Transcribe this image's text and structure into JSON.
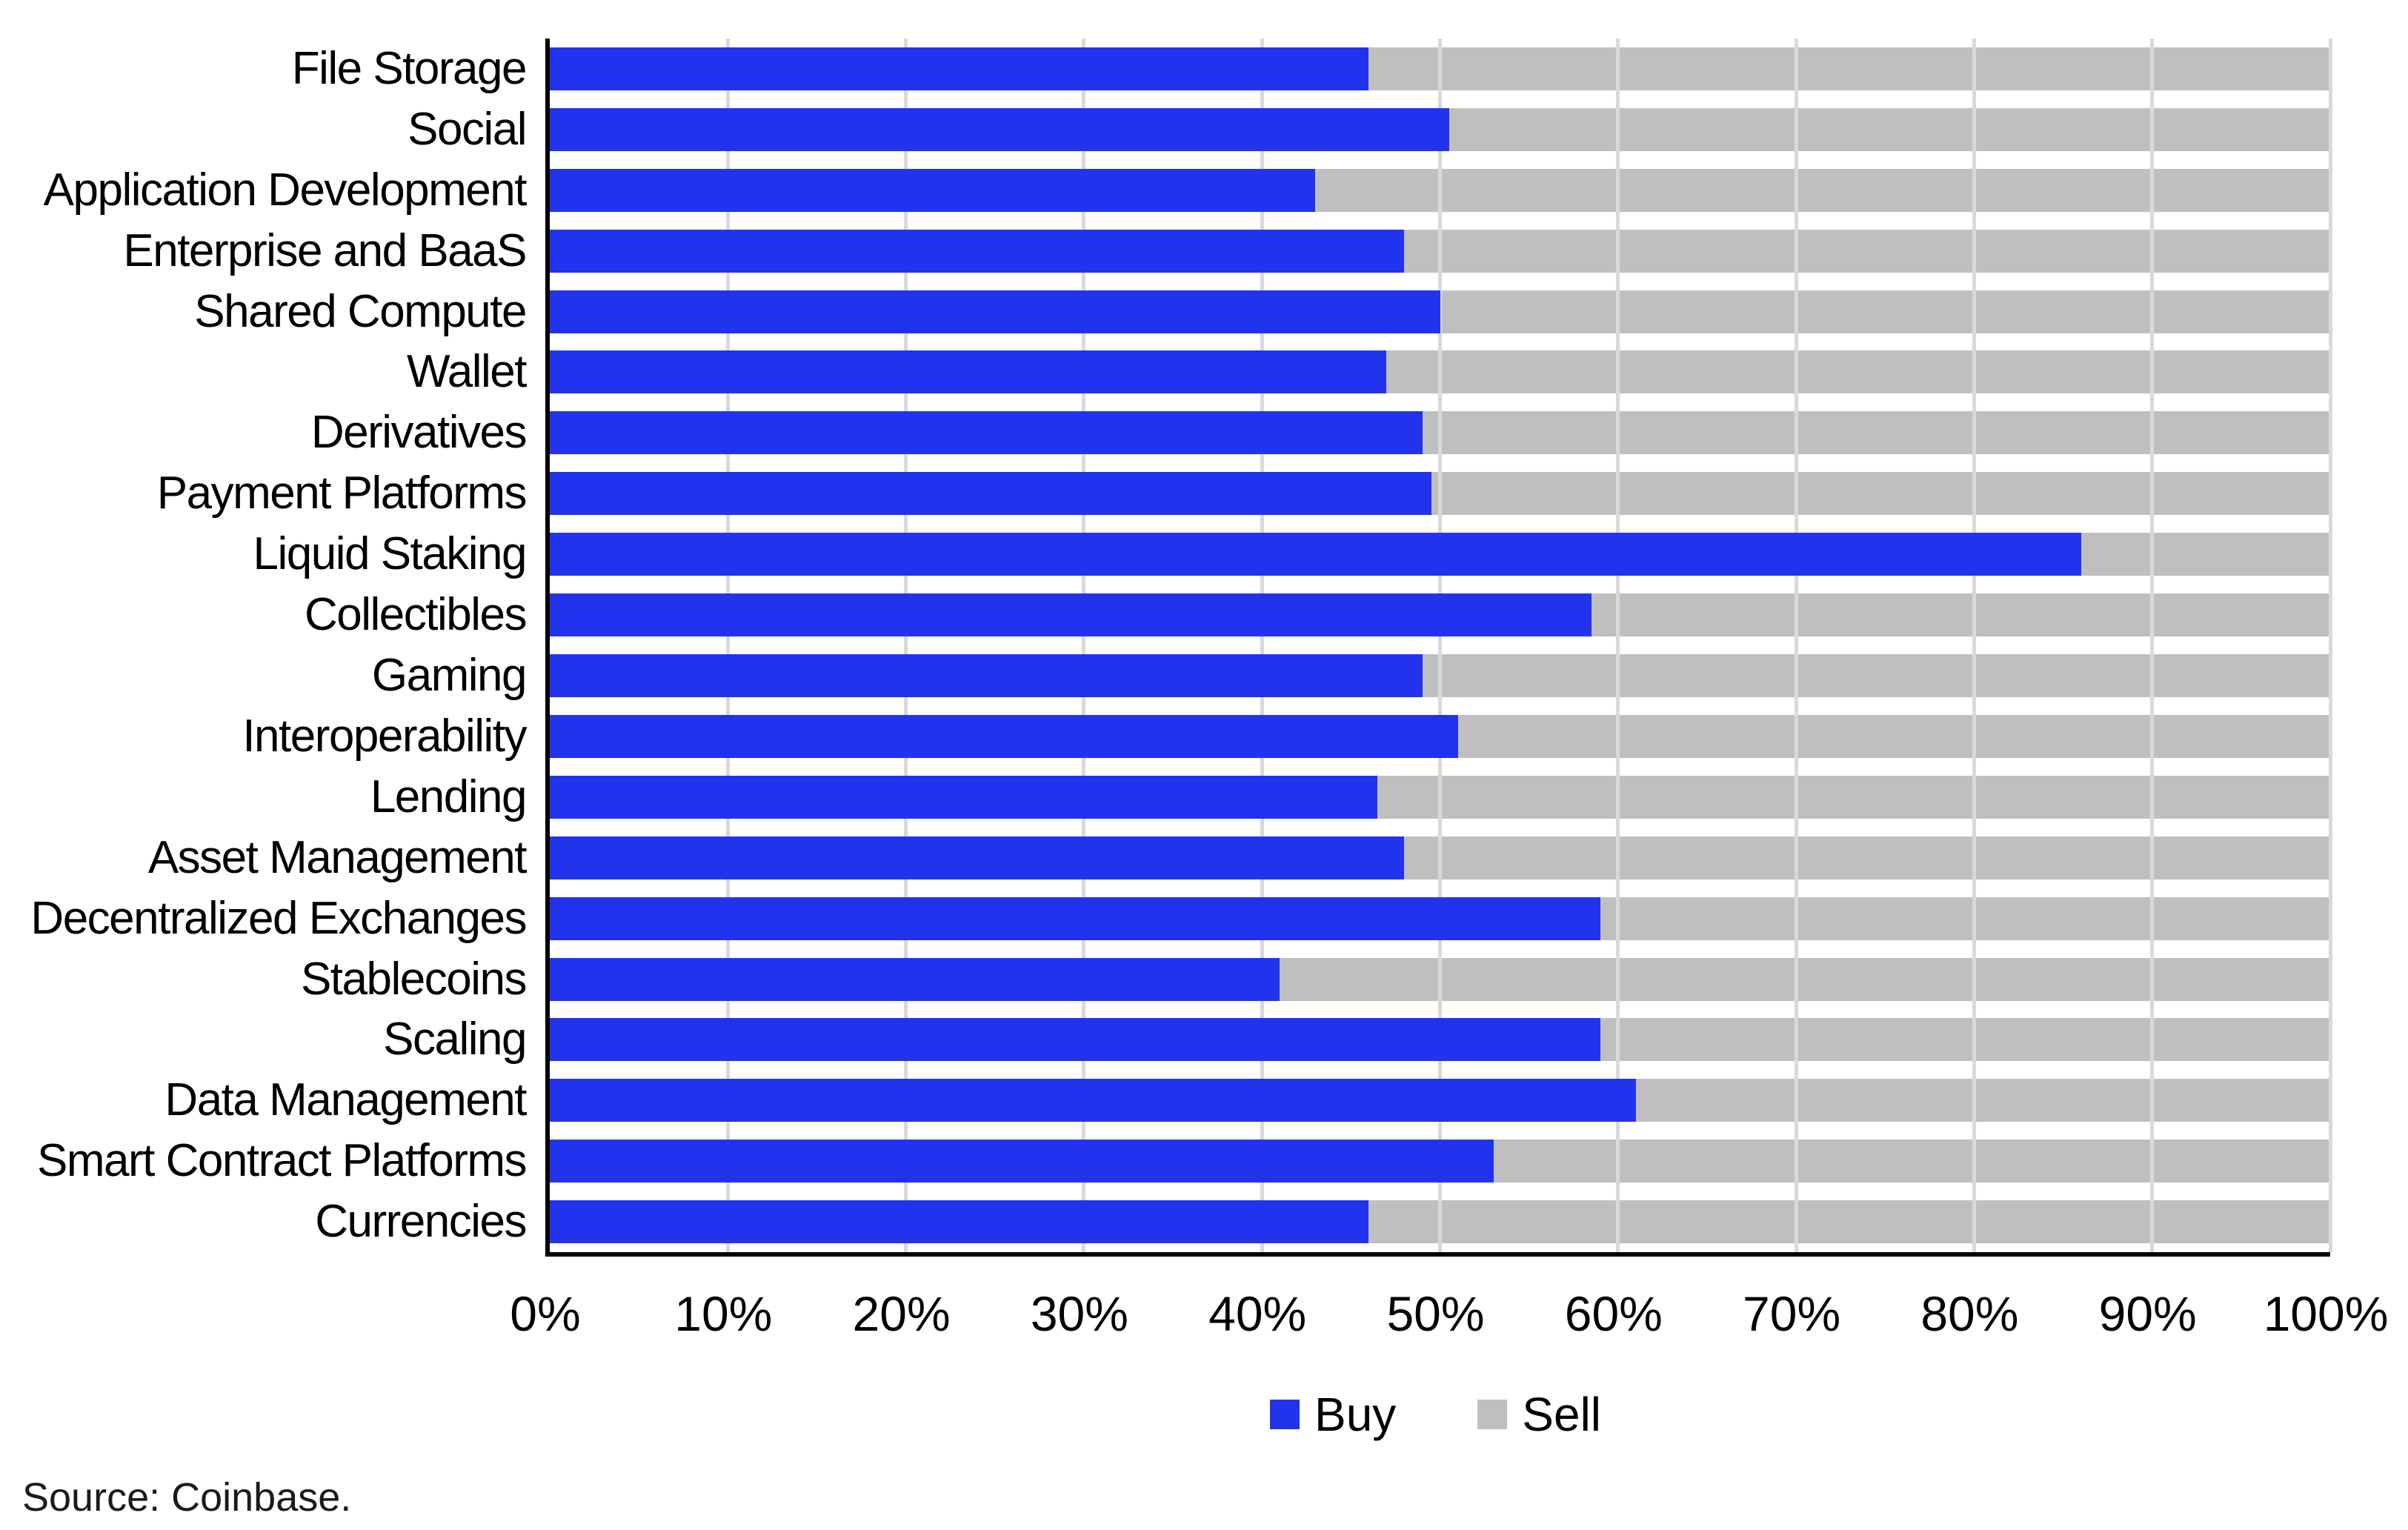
{
  "figure": {
    "background": "#FFFFFF",
    "source_note": "Source: Coinbase."
  },
  "chart_data": {
    "type": "bar",
    "orientation": "horizontal",
    "stacked": true,
    "title": "",
    "xlabel": "",
    "ylabel": "",
    "categories": [
      "File Storage",
      "Social",
      "Application Development",
      "Enterprise and BaaS",
      "Shared Compute",
      "Wallet",
      "Derivatives",
      "Payment Platforms",
      "Liquid Staking",
      "Collectibles",
      "Gaming",
      "Interoperability",
      "Lending",
      "Asset Management",
      "Decentralized Exchanges",
      "Stablecoins",
      "Scaling",
      "Data Management",
      "Smart Contract Platforms",
      "Currencies"
    ],
    "series": [
      {
        "name": "Buy",
        "color": "#2233EE",
        "values": [
          46,
          50.5,
          43,
          48,
          50,
          47,
          49,
          49.5,
          86,
          58.5,
          49,
          51,
          46.5,
          48,
          59,
          41,
          59,
          61,
          53,
          46
        ]
      },
      {
        "name": "Sell",
        "color": "#BFBFBF",
        "values": [
          54,
          49.5,
          57,
          52,
          50,
          53,
          51,
          50.5,
          14,
          41.5,
          51,
          49,
          53.5,
          52,
          41,
          59,
          41,
          39,
          47,
          54
        ]
      }
    ],
    "x_axis": {
      "min": 0,
      "max": 100,
      "tick_step": 10,
      "tick_labels": [
        "0%",
        "10%",
        "20%",
        "30%",
        "40%",
        "50%",
        "60%",
        "70%",
        "80%",
        "90%",
        "100%"
      ],
      "unit": "percent"
    },
    "grid": "vertical",
    "gridline_color": "#D9D9D9",
    "axis_line_color": "#000000",
    "legend": {
      "position": "bottom",
      "entries": [
        {
          "label": "Buy",
          "color": "#2233EE"
        },
        {
          "label": "Sell",
          "color": "#BFBFBF"
        }
      ]
    }
  }
}
